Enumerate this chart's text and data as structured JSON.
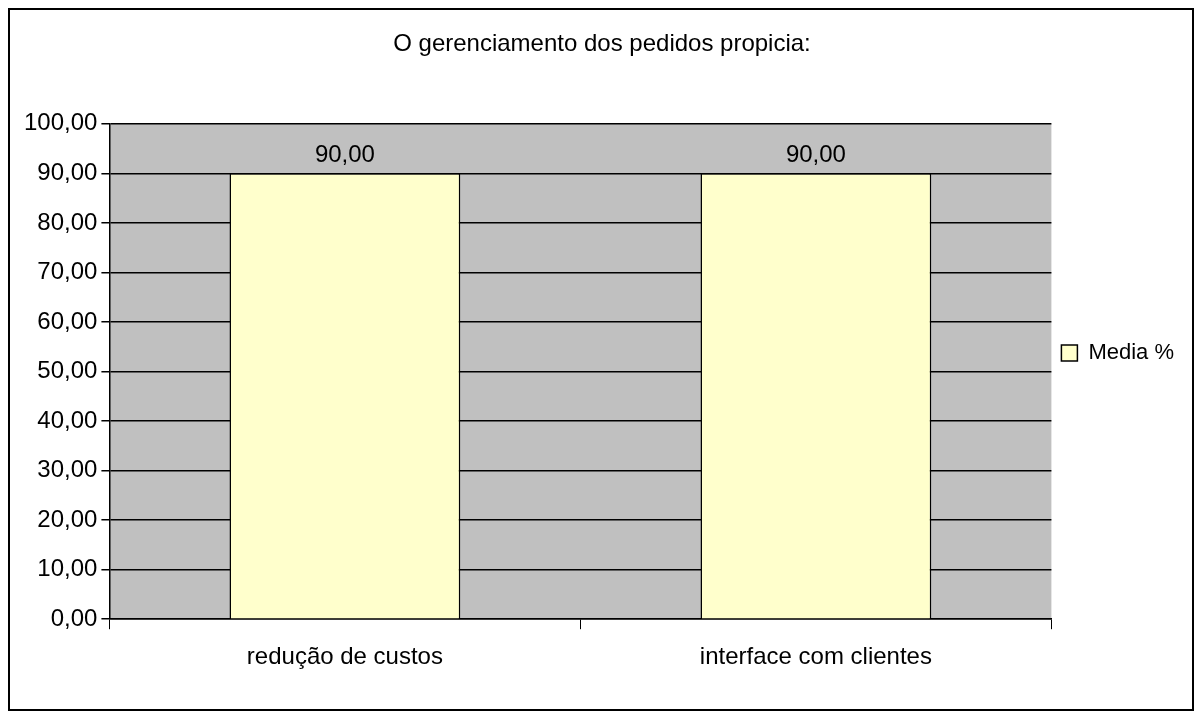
{
  "chart_data": {
    "type": "bar",
    "title": "O gerenciamento dos pedidos propicia:",
    "categories": [
      "redução de custos",
      "interface com clientes"
    ],
    "series": [
      {
        "name": "Media %",
        "color": "#ffffcc",
        "values": [
          90,
          90
        ],
        "value_labels": [
          "90,00",
          "90,00"
        ]
      }
    ],
    "ylim": [
      0,
      100
    ],
    "yticks": [
      {
        "value": 0,
        "label": "0,00"
      },
      {
        "value": 10,
        "label": "10,00"
      },
      {
        "value": 20,
        "label": "20,00"
      },
      {
        "value": 30,
        "label": "30,00"
      },
      {
        "value": 40,
        "label": "40,00"
      },
      {
        "value": 50,
        "label": "50,00"
      },
      {
        "value": 60,
        "label": "60,00"
      },
      {
        "value": 70,
        "label": "70,00"
      },
      {
        "value": 80,
        "label": "80,00"
      },
      {
        "value": 90,
        "label": "90,00"
      },
      {
        "value": 100,
        "label": "100,00"
      }
    ],
    "grid": "y",
    "legend": "right"
  }
}
